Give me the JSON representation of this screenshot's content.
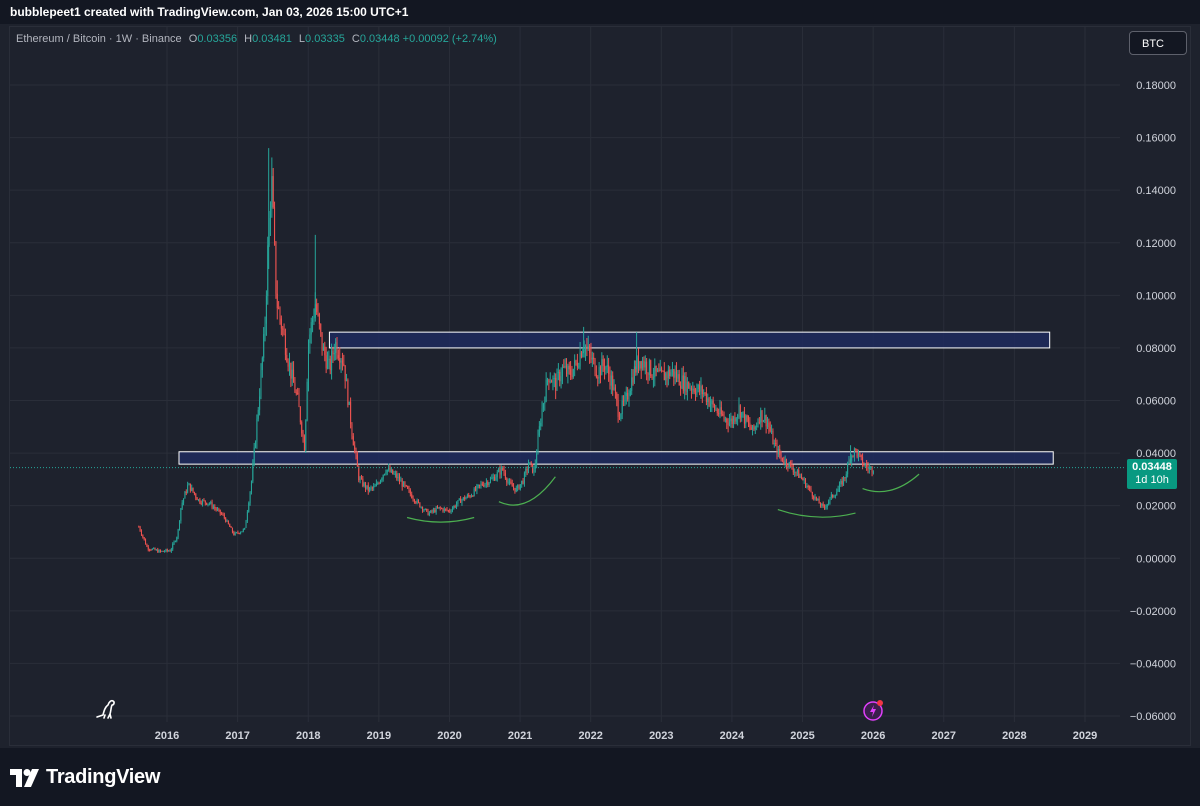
{
  "header": {
    "caption": "bubblepeet1 created with TradingView.com, Jan 03, 2026 15:00 UTC+1"
  },
  "legend": {
    "symbol": "Ethereum / Bitcoin · 1W · Binance",
    "open_label": "O",
    "open": "0.03356",
    "high_label": "H",
    "high": "0.03481",
    "low_label": "L",
    "low": "0.03335",
    "close_label": "C",
    "close": "0.03448",
    "change": "+0.00092 (+2.74%)"
  },
  "currency_button": "BTC",
  "last_price": {
    "value": "0.03448",
    "countdown": "1d 10h"
  },
  "footer": {
    "brand": "TradingView"
  },
  "colors": {
    "background": "#1e222d",
    "up": "#26a69a",
    "down": "#ef5350",
    "zone_fill": "#1f2a5e",
    "curve": "#4caf50"
  },
  "icons": [
    "dino-icon",
    "lightning-icon",
    "tradingview-logo-icon"
  ],
  "chart_data": {
    "type": "candlestick",
    "title": "",
    "xlabel": "",
    "ylabel": "",
    "x_ticks": [
      "2016",
      "2017",
      "2018",
      "2019",
      "2020",
      "2021",
      "2022",
      "2023",
      "2024",
      "2025",
      "2026",
      "2027",
      "2028",
      "2029"
    ],
    "x_range": [
      2015.3,
      2029.7
    ],
    "y_ticks": [
      "0.18000",
      "0.16000",
      "0.14000",
      "0.12000",
      "0.10000",
      "0.08000",
      "0.06000",
      "0.04000",
      "0.02000",
      "0.00000",
      "−0.02000",
      "−0.04000",
      "−0.06000"
    ],
    "y_range": [
      -0.063,
      0.197
    ],
    "grid": true,
    "price_path": [
      [
        2015.6,
        0.012
      ],
      [
        2015.72,
        0.004
      ],
      [
        2015.9,
        0.0025
      ],
      [
        2016.05,
        0.003
      ],
      [
        2016.15,
        0.009
      ],
      [
        2016.2,
        0.02
      ],
      [
        2016.3,
        0.028
      ],
      [
        2016.45,
        0.022
      ],
      [
        2016.6,
        0.021
      ],
      [
        2016.8,
        0.016
      ],
      [
        2016.95,
        0.009
      ],
      [
        2017.1,
        0.011
      ],
      [
        2017.2,
        0.03
      ],
      [
        2017.3,
        0.06
      ],
      [
        2017.38,
        0.085
      ],
      [
        2017.44,
        0.125
      ],
      [
        2017.48,
        0.145
      ],
      [
        2017.55,
        0.098
      ],
      [
        2017.65,
        0.085
      ],
      [
        2017.75,
        0.071
      ],
      [
        2017.85,
        0.06
      ],
      [
        2017.95,
        0.042
      ],
      [
        2018.0,
        0.082
      ],
      [
        2018.1,
        0.097
      ],
      [
        2018.2,
        0.08
      ],
      [
        2018.3,
        0.072
      ],
      [
        2018.38,
        0.082
      ],
      [
        2018.5,
        0.075
      ],
      [
        2018.62,
        0.048
      ],
      [
        2018.72,
        0.03
      ],
      [
        2018.85,
        0.026
      ],
      [
        2018.95,
        0.027
      ],
      [
        2019.1,
        0.034
      ],
      [
        2019.25,
        0.031
      ],
      [
        2019.4,
        0.026
      ],
      [
        2019.55,
        0.021
      ],
      [
        2019.7,
        0.017
      ],
      [
        2019.85,
        0.019
      ],
      [
        2020.0,
        0.018
      ],
      [
        2020.15,
        0.022
      ],
      [
        2020.3,
        0.024
      ],
      [
        2020.45,
        0.028
      ],
      [
        2020.6,
        0.03
      ],
      [
        2020.75,
        0.034
      ],
      [
        2020.85,
        0.028
      ],
      [
        2020.95,
        0.026
      ],
      [
        2021.05,
        0.03
      ],
      [
        2021.12,
        0.036
      ],
      [
        2021.2,
        0.033
      ],
      [
        2021.3,
        0.055
      ],
      [
        2021.4,
        0.07
      ],
      [
        2021.5,
        0.066
      ],
      [
        2021.6,
        0.072
      ],
      [
        2021.7,
        0.07
      ],
      [
        2021.8,
        0.074
      ],
      [
        2021.9,
        0.082
      ],
      [
        2022.0,
        0.076
      ],
      [
        2022.1,
        0.071
      ],
      [
        2022.2,
        0.074
      ],
      [
        2022.3,
        0.067
      ],
      [
        2022.4,
        0.055
      ],
      [
        2022.5,
        0.06
      ],
      [
        2022.6,
        0.07
      ],
      [
        2022.7,
        0.076
      ],
      [
        2022.8,
        0.073
      ],
      [
        2022.9,
        0.07
      ],
      [
        2023.0,
        0.069
      ],
      [
        2023.15,
        0.071
      ],
      [
        2023.3,
        0.067
      ],
      [
        2023.45,
        0.065
      ],
      [
        2023.6,
        0.063
      ],
      [
        2023.75,
        0.057
      ],
      [
        2023.9,
        0.053
      ],
      [
        2024.0,
        0.052
      ],
      [
        2024.1,
        0.057
      ],
      [
        2024.2,
        0.052
      ],
      [
        2024.3,
        0.048
      ],
      [
        2024.4,
        0.055
      ],
      [
        2024.5,
        0.052
      ],
      [
        2024.6,
        0.043
      ],
      [
        2024.7,
        0.038
      ],
      [
        2024.8,
        0.036
      ],
      [
        2024.9,
        0.033
      ],
      [
        2025.0,
        0.03
      ],
      [
        2025.1,
        0.026
      ],
      [
        2025.2,
        0.022
      ],
      [
        2025.3,
        0.019
      ],
      [
        2025.4,
        0.023
      ],
      [
        2025.5,
        0.026
      ],
      [
        2025.6,
        0.031
      ],
      [
        2025.68,
        0.039
      ],
      [
        2025.75,
        0.041
      ],
      [
        2025.85,
        0.036
      ],
      [
        2025.95,
        0.034
      ],
      [
        2026.02,
        0.0345
      ]
    ],
    "resistance_zones": [
      {
        "x_start": 2018.3,
        "x_end": 2028.5,
        "y_low": 0.08,
        "y_high": 0.086
      },
      {
        "x_start": 2016.17,
        "x_end": 2028.55,
        "y_low": 0.0358,
        "y_high": 0.0405
      }
    ],
    "last_price": 0.03448
  }
}
